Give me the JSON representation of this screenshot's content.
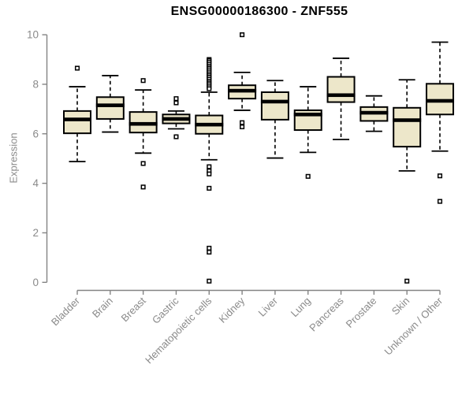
{
  "colors": {
    "background": "#FFFFFF",
    "box_fill": "#EDE7CA",
    "box_stroke": "#000000",
    "median": "#000000",
    "outlier_fill": "#FFFFFF",
    "axis": "#848484",
    "tick_text": "#8A8A8A",
    "title_text": "#000000"
  },
  "chart_data": {
    "type": "boxplot",
    "title": "ENSG00000186300 - ZNF555",
    "xlabel": "",
    "ylabel": "Expression",
    "ylim": [
      0,
      10
    ],
    "yticks": [
      0,
      2,
      4,
      6,
      8,
      10
    ],
    "grid": false,
    "legend": false,
    "categories": [
      "Bladder",
      "Brain",
      "Breast",
      "Gastric",
      "Hematopoietic cells",
      "Kidney",
      "Liver",
      "Lung",
      "Pancreas",
      "Prostate",
      "Skin",
      "Unknown / Other"
    ],
    "series": [
      {
        "category": "Bladder",
        "whisker_low": 4.88,
        "q1": 6.02,
        "median": 6.58,
        "q3": 6.92,
        "whisker_high": 7.9,
        "outliers": [
          8.65
        ]
      },
      {
        "category": "Brain",
        "whisker_low": 6.07,
        "q1": 6.6,
        "median": 7.15,
        "q3": 7.48,
        "whisker_high": 8.35,
        "outliers": []
      },
      {
        "category": "Breast",
        "whisker_low": 5.22,
        "q1": 6.05,
        "median": 6.4,
        "q3": 6.88,
        "whisker_high": 7.77,
        "outliers": [
          8.15,
          4.8,
          3.85
        ]
      },
      {
        "category": "Gastric",
        "whisker_low": 6.2,
        "q1": 6.42,
        "median": 6.6,
        "q3": 6.78,
        "whisker_high": 6.92,
        "outliers": [
          7.42,
          7.25,
          5.88
        ]
      },
      {
        "category": "Hematopoietic cells",
        "whisker_low": 4.95,
        "q1": 6.0,
        "median": 6.37,
        "q3": 6.74,
        "whisker_high": 7.68,
        "outliers": [
          9.0,
          8.95,
          8.88,
          8.8,
          8.72,
          8.65,
          8.58,
          8.5,
          8.42,
          8.35,
          8.28,
          8.2,
          8.12,
          8.05,
          7.98,
          7.9,
          7.82,
          4.67,
          4.5,
          4.38,
          3.8,
          1.38,
          1.22,
          0.05
        ]
      },
      {
        "category": "Kidney",
        "whisker_low": 6.95,
        "q1": 7.42,
        "median": 7.74,
        "q3": 7.96,
        "whisker_high": 8.48,
        "outliers": [
          10.0,
          6.45,
          6.28
        ]
      },
      {
        "category": "Liver",
        "whisker_low": 5.02,
        "q1": 6.57,
        "median": 7.3,
        "q3": 7.68,
        "whisker_high": 8.15,
        "outliers": []
      },
      {
        "category": "Lung",
        "whisker_low": 5.25,
        "q1": 6.15,
        "median": 6.78,
        "q3": 6.95,
        "whisker_high": 7.9,
        "outliers": [
          4.28
        ]
      },
      {
        "category": "Pancreas",
        "whisker_low": 5.77,
        "q1": 7.28,
        "median": 7.56,
        "q3": 8.3,
        "whisker_high": 9.05,
        "outliers": []
      },
      {
        "category": "Prostate",
        "whisker_low": 6.1,
        "q1": 6.52,
        "median": 6.85,
        "q3": 7.08,
        "whisker_high": 7.53,
        "outliers": []
      },
      {
        "category": "Skin",
        "whisker_low": 4.5,
        "q1": 5.48,
        "median": 6.55,
        "q3": 7.05,
        "whisker_high": 8.18,
        "outliers": [
          0.05
        ]
      },
      {
        "category": "Unknown / Other",
        "whisker_low": 5.3,
        "q1": 6.78,
        "median": 7.33,
        "q3": 8.02,
        "whisker_high": 9.7,
        "outliers": [
          4.3,
          3.27
        ]
      }
    ]
  }
}
